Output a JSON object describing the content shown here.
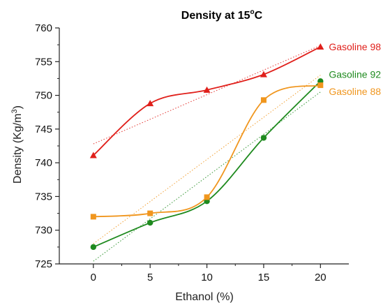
{
  "chart_data": {
    "type": "line",
    "title": "Density at 15",
    "title_superscript": "o",
    "title_unit": "C",
    "xlabel": "Ethanol (%)",
    "ylabel": "Density (Kg/m",
    "ylabel_superscript": "3",
    "ylabel_close": ")",
    "x": [
      0,
      5,
      10,
      15,
      20
    ],
    "xlim": [
      -3,
      22.5
    ],
    "ylim": [
      725,
      760
    ],
    "x_ticks": [
      0,
      5,
      10,
      15,
      20
    ],
    "y_ticks": [
      725,
      730,
      735,
      740,
      745,
      750,
      755,
      760
    ],
    "grid": false,
    "legend": "labels at line ends",
    "series": [
      {
        "name": "Gasoline 98",
        "marker": "triangle",
        "color": "#e0201b",
        "values": [
          741.1,
          748.8,
          750.8,
          753.1,
          757.2
        ],
        "trend": [
          742.8,
          757.4
        ]
      },
      {
        "name": "Gasoline 92",
        "marker": "circle",
        "color": "#1e8a1e",
        "values": [
          727.5,
          731.1,
          734.3,
          743.7,
          752.1
        ],
        "trend": [
          725.4,
          750.5
        ]
      },
      {
        "name": "Gasoline 88",
        "marker": "square",
        "color": "#f0961e",
        "values": [
          732.0,
          732.5,
          734.9,
          749.3,
          751.5
        ],
        "trend": [
          728.0,
          753.0
        ]
      }
    ]
  }
}
